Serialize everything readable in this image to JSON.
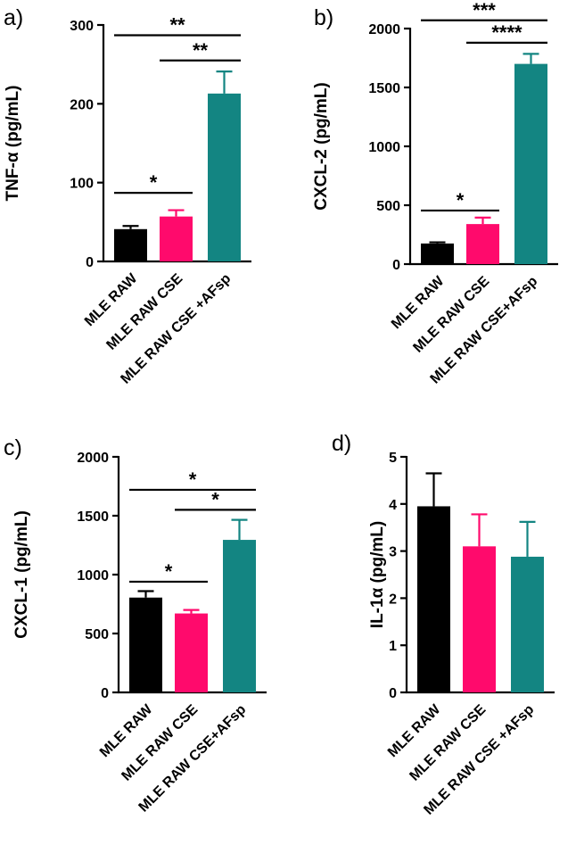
{
  "colors": {
    "black": "#000000",
    "pink": "#ff0a6c",
    "teal": "#138582"
  },
  "chart_data": [
    {
      "type": "bar",
      "panel_label": "a)",
      "ylabel": "TNF-α (pg/mL)",
      "ylim": [
        0,
        300
      ],
      "yticks": [
        "0",
        "100",
        "200",
        "300"
      ],
      "categories": [
        "MLE RAW",
        "MLE RAW CSE",
        "MLE RAW CSE +AFsp"
      ],
      "values": [
        41,
        57,
        213
      ],
      "errors": [
        4,
        8,
        28
      ],
      "significance": [
        {
          "from": 0,
          "to": 1,
          "label": "*",
          "y": 87
        },
        {
          "from": 1,
          "to": 2,
          "label": "**",
          "y": 255
        },
        {
          "from": 0,
          "to": 2,
          "label": "**",
          "y": 287
        }
      ]
    },
    {
      "type": "bar",
      "panel_label": "b)",
      "ylabel": "CXCL-2 (pg/mL)",
      "ylim": [
        0,
        2000
      ],
      "yticks": [
        "0",
        "500",
        "1000",
        "1500",
        "2000"
      ],
      "categories": [
        "MLE RAW",
        "MLE RAW CSE",
        "MLE RAW CSE+AFsp"
      ],
      "values": [
        175,
        340,
        1700
      ],
      "errors": [
        10,
        55,
        85
      ],
      "significance": [
        {
          "from": 0,
          "to": 1,
          "label": "*",
          "y": 455
        },
        {
          "from": 1,
          "to": 2,
          "label": "****",
          "y": 1880
        },
        {
          "from": 0,
          "to": 2,
          "label": "***",
          "y": 2070
        }
      ]
    },
    {
      "type": "bar",
      "panel_label": "c)",
      "ylabel": "CXCL-1 (pg/mL)",
      "ylim": [
        0,
        2000
      ],
      "yticks": [
        "0",
        "500",
        "1000",
        "1500",
        "2000"
      ],
      "categories": [
        "MLE RAW",
        "MLE RAW CSE",
        "MLE RAW CSE+AFsp"
      ],
      "values": [
        805,
        670,
        1295
      ],
      "errors": [
        55,
        30,
        170
      ],
      "significance": [
        {
          "from": 0,
          "to": 1,
          "label": "*",
          "y": 940
        },
        {
          "from": 1,
          "to": 2,
          "label": "*",
          "y": 1550
        },
        {
          "from": 0,
          "to": 2,
          "label": "*",
          "y": 1720
        }
      ]
    },
    {
      "type": "bar",
      "panel_label": "d)",
      "ylabel": "IL-1α (pg/mL)",
      "ylim": [
        0,
        5
      ],
      "yticks": [
        "0",
        "1",
        "2",
        "3",
        "4",
        "5"
      ],
      "categories": [
        "MLE RAW",
        "MLE RAW CSE",
        "MLE RAW CSE +AFsp"
      ],
      "values": [
        3.95,
        3.1,
        2.88
      ],
      "errors": [
        0.7,
        0.68,
        0.74
      ],
      "significance": []
    }
  ]
}
